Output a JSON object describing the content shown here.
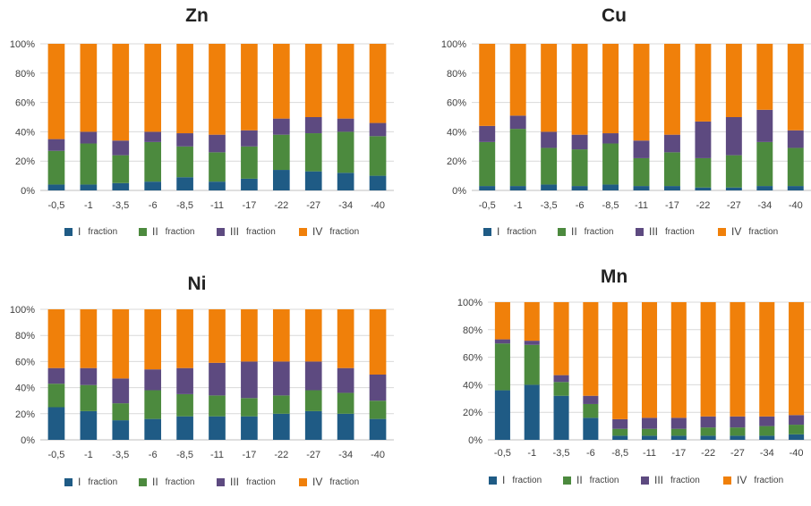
{
  "colors": {
    "I": "#1f5b85",
    "II": "#4c8a3e",
    "III": "#5d4a80",
    "IV": "#f0800a"
  },
  "legend": [
    {
      "num": "I",
      "word": "fraction"
    },
    {
      "num": "II",
      "word": "fraction"
    },
    {
      "num": "III",
      "word": "fraction"
    },
    {
      "num": "IV",
      "word": "fraction"
    }
  ],
  "chart_data": [
    {
      "type": "bar",
      "stacked": true,
      "title": "Zn",
      "categories": [
        "-0,5",
        "-1",
        "-3,5",
        "-6",
        "-8,5",
        "-11",
        "-17",
        "-22",
        "-27",
        "-34",
        "-40"
      ],
      "yticks": [
        "0%",
        "20%",
        "40%",
        "60%",
        "80%",
        "100%"
      ],
      "ylim": [
        0,
        100
      ],
      "series": [
        {
          "name": "I fraction",
          "values": [
            4,
            4,
            5,
            6,
            9,
            6,
            8,
            14,
            13,
            12,
            10
          ]
        },
        {
          "name": "II fraction",
          "values": [
            23,
            28,
            19,
            27,
            21,
            20,
            22,
            24,
            26,
            28,
            27
          ]
        },
        {
          "name": "III fraction",
          "values": [
            8,
            8,
            10,
            7,
            9,
            12,
            11,
            11,
            11,
            9,
            9
          ]
        },
        {
          "name": "IV fraction",
          "values": [
            65,
            60,
            66,
            60,
            61,
            62,
            59,
            51,
            50,
            51,
            54
          ]
        }
      ]
    },
    {
      "type": "bar",
      "stacked": true,
      "title": "Cu",
      "categories": [
        "-0,5",
        "-1",
        "-3,5",
        "-6",
        "-8,5",
        "-11",
        "-17",
        "-22",
        "-27",
        "-34",
        "-40"
      ],
      "yticks": [
        "0%",
        "20%",
        "40%",
        "60%",
        "80%",
        "100%"
      ],
      "ylim": [
        0,
        100
      ],
      "series": [
        {
          "name": "I fraction",
          "values": [
            3,
            3,
            4,
            3,
            4,
            3,
            3,
            2,
            2,
            3,
            3
          ]
        },
        {
          "name": "II fraction",
          "values": [
            30,
            39,
            25,
            25,
            28,
            19,
            23,
            20,
            22,
            30,
            26
          ]
        },
        {
          "name": "III fraction",
          "values": [
            11,
            9,
            11,
            10,
            7,
            12,
            12,
            25,
            26,
            22,
            12
          ]
        },
        {
          "name": "IV fraction",
          "values": [
            56,
            49,
            60,
            62,
            61,
            66,
            62,
            53,
            50,
            45,
            59
          ]
        }
      ]
    },
    {
      "type": "bar",
      "stacked": true,
      "title": "Ni",
      "categories": [
        "-0,5",
        "-1",
        "-3,5",
        "-6",
        "-8,5",
        "-11",
        "-17",
        "-22",
        "-27",
        "-34",
        "-40"
      ],
      "yticks": [
        "0%",
        "20%",
        "40%",
        "60%",
        "80%",
        "100%"
      ],
      "ylim": [
        0,
        100
      ],
      "series": [
        {
          "name": "I fraction",
          "values": [
            25,
            22,
            15,
            16,
            18,
            18,
            18,
            20,
            22,
            20,
            16
          ]
        },
        {
          "name": "II fraction",
          "values": [
            18,
            20,
            13,
            22,
            17,
            16,
            14,
            14,
            16,
            16,
            14
          ]
        },
        {
          "name": "III fraction",
          "values": [
            12,
            13,
            19,
            16,
            20,
            25,
            28,
            26,
            22,
            19,
            20
          ]
        },
        {
          "name": "IV fraction",
          "values": [
            45,
            45,
            53,
            46,
            45,
            41,
            40,
            40,
            40,
            45,
            50
          ]
        }
      ]
    },
    {
      "type": "bar",
      "stacked": true,
      "title": "Mn",
      "categories": [
        "-0,5",
        "-1",
        "-3,5",
        "-6",
        "-8,5",
        "-11",
        "-17",
        "-22",
        "-27",
        "-34",
        "-40"
      ],
      "yticks": [
        "0%",
        "20%",
        "40%",
        "60%",
        "80%",
        "100%"
      ],
      "ylim": [
        0,
        100
      ],
      "series": [
        {
          "name": "I fraction",
          "values": [
            36,
            40,
            32,
            16,
            3,
            3,
            3,
            3,
            3,
            3,
            4
          ]
        },
        {
          "name": "II fraction",
          "values": [
            34,
            29,
            10,
            10,
            5,
            5,
            5,
            6,
            6,
            7,
            7
          ]
        },
        {
          "name": "III fraction",
          "values": [
            3,
            3,
            5,
            6,
            7,
            8,
            8,
            8,
            8,
            7,
            7
          ]
        },
        {
          "name": "IV fraction",
          "values": [
            27,
            28,
            53,
            68,
            85,
            84,
            84,
            83,
            83,
            83,
            82
          ]
        }
      ]
    }
  ]
}
